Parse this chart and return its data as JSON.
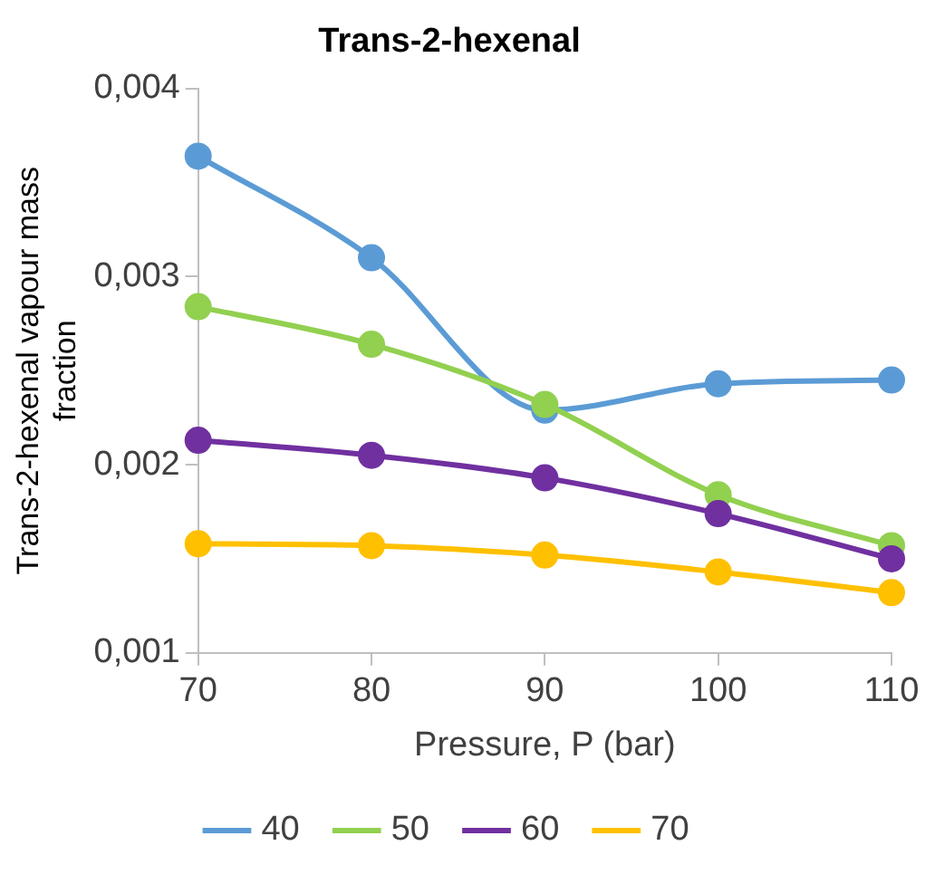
{
  "chart_data": {
    "type": "line",
    "title": "Trans-2-hexenal",
    "xlabel": "Pressure, P (bar)",
    "ylabel": "Trans-2-hexenal vapour mass fraction",
    "x": [
      70,
      80,
      90,
      100,
      110
    ],
    "series": [
      {
        "name": "40",
        "color": "#5b9bd5",
        "values": [
          0.00364,
          0.0031,
          0.00229,
          0.00243,
          0.00245
        ]
      },
      {
        "name": "50",
        "color": "#92d050",
        "values": [
          0.00284,
          0.00264,
          0.00232,
          0.00184,
          0.00157
        ]
      },
      {
        "name": "60",
        "color": "#7030a0",
        "values": [
          0.00213,
          0.00205,
          0.00193,
          0.00174,
          0.0015
        ]
      },
      {
        "name": "70",
        "color": "#ffc000",
        "values": [
          0.00158,
          0.00157,
          0.00152,
          0.00143,
          0.00132
        ]
      }
    ],
    "xlim": [
      70,
      110
    ],
    "xticks": [
      70,
      80,
      90,
      100,
      110
    ],
    "ylim": [
      0.001,
      0.004
    ],
    "yticks": [
      {
        "value": 0.001,
        "label": "0,001"
      },
      {
        "value": 0.002,
        "label": "0,002"
      },
      {
        "value": 0.003,
        "label": "0,003"
      },
      {
        "value": 0.004,
        "label": "0,004"
      }
    ],
    "grid": false,
    "legend": "bottom",
    "marker": "circle",
    "line_style": "solid"
  }
}
